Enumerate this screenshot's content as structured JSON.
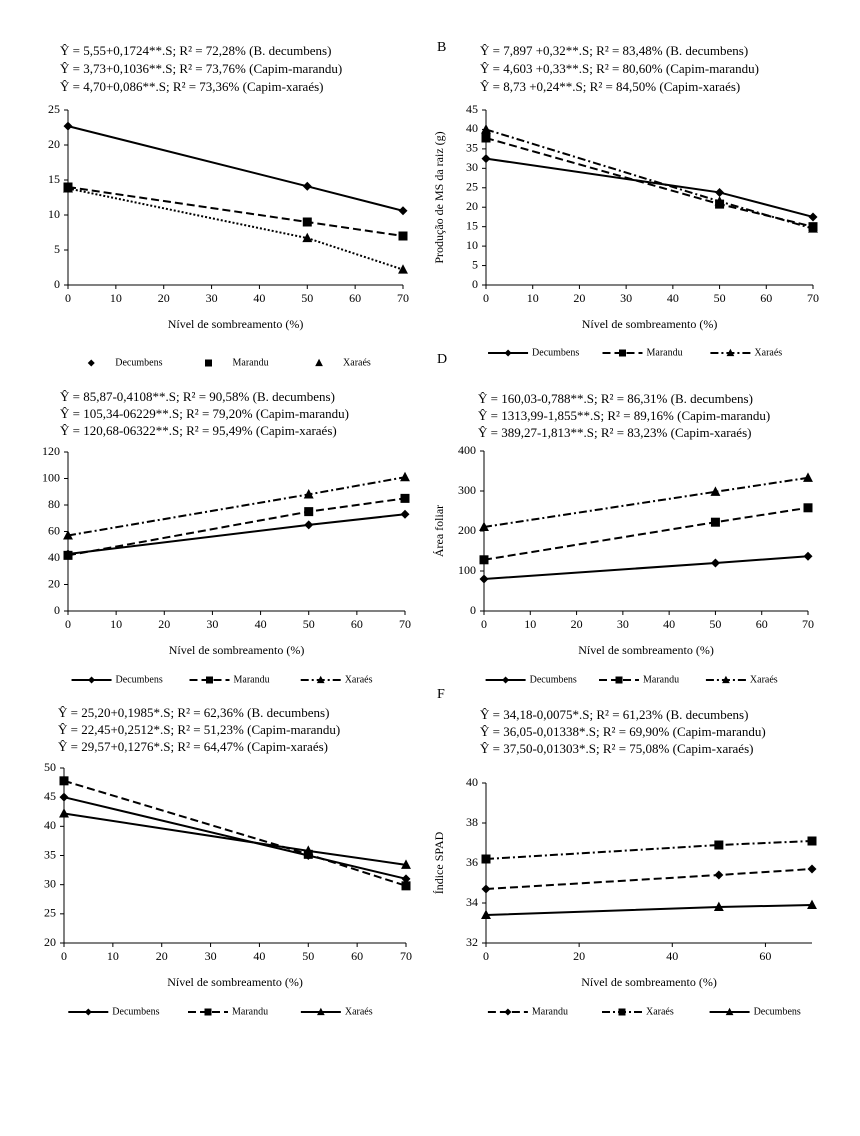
{
  "chart_data": [
    {
      "type": "line",
      "annotations": [
        "Ŷ = 5,55+0,1724**.S; R² = 72,28% (B. decumbens)",
        "Ŷ = 3,73+0,1036**.S; R² = 73,76% (Capim-marandu)",
        "Ŷ = 4,70+0,086**.S; R² = 73,36% (Capim-xaraés)"
      ],
      "x_label": "Nível de sombreamento (%)",
      "x": [
        0,
        50,
        70
      ],
      "xlim": [
        0,
        70
      ],
      "xticks": [
        0,
        10,
        20,
        30,
        40,
        50,
        60,
        70
      ],
      "ylim": [
        0,
        25
      ],
      "yticks": [
        0,
        5,
        10,
        15,
        20,
        25
      ],
      "legend_lines": false,
      "series": [
        {
          "name": "Decumbens",
          "color": "#000000",
          "marker": "diamond",
          "line_style": "solid",
          "values": [
            22.7,
            14.1,
            10.6
          ]
        },
        {
          "name": "Marandu",
          "color": "#000000",
          "marker": "square",
          "line_style": "dashed",
          "values": [
            14.0,
            9.0,
            7.0
          ]
        },
        {
          "name": "Xaraés",
          "color": "#000000",
          "marker": "triangle",
          "line_style": "dotted",
          "values": [
            13.8,
            6.7,
            2.2
          ]
        }
      ]
    },
    {
      "type": "line",
      "label": "B",
      "annotations": [
        "Ŷ = 7,897 +0,32**.S; R² = 83,48% (B. decumbens)",
        "Ŷ = 4,603 +0,33**.S; R² = 80,60% (Capim-marandu)",
        "Ŷ = 8,73 +0,24**.S; R² = 84,50% (Capim-xaraés)"
      ],
      "x_label": "Nível de sombreamento (%)",
      "y_label": "Produção de MS da raiz (g)",
      "x": [
        0,
        50,
        70
      ],
      "xlim": [
        0,
        70
      ],
      "xticks": [
        0,
        10,
        20,
        30,
        40,
        50,
        60,
        70
      ],
      "ylim": [
        0,
        45
      ],
      "yticks": [
        0,
        5,
        10,
        15,
        20,
        25,
        30,
        35,
        40,
        45
      ],
      "legend_lines": true,
      "series": [
        {
          "name": "Decumbens",
          "color": "#000000",
          "marker": "diamond",
          "line_style": "solid",
          "values": [
            32.5,
            23.8,
            17.5
          ]
        },
        {
          "name": "Marandu",
          "color": "#000000",
          "marker": "square",
          "line_style": "dashed",
          "values": [
            37.8,
            20.8,
            15.0
          ]
        },
        {
          "name": "Xaraés",
          "color": "#000000",
          "marker": "triangle",
          "line_style": "dashdot",
          "values": [
            40.0,
            21.5,
            14.5
          ]
        }
      ]
    },
    {
      "type": "line",
      "annotations": [
        "Ŷ = 85,87-0,4108**.S; R² = 90,58% (B. decumbens)",
        "Ŷ = 105,34-06229**.S; R² = 79,20% (Capim-marandu)",
        "Ŷ = 120,68-06322**.S; R² = 95,49% (Capim-xaraés)"
      ],
      "x_label": "Nível de sombreamento (%)",
      "x": [
        0,
        50,
        70
      ],
      "xlim": [
        0,
        70
      ],
      "xticks": [
        0,
        10,
        20,
        30,
        40,
        50,
        60,
        70
      ],
      "ylim": [
        0,
        120
      ],
      "yticks": [
        0,
        20,
        40,
        60,
        80,
        100,
        120
      ],
      "legend_lines": true,
      "series": [
        {
          "name": "Decumbens",
          "color": "#000000",
          "marker": "diamond",
          "line_style": "solid",
          "values": [
            43,
            65,
            73
          ]
        },
        {
          "name": "Marandu",
          "color": "#000000",
          "marker": "square",
          "line_style": "dashed",
          "values": [
            42,
            75,
            85
          ]
        },
        {
          "name": "Xaraés",
          "color": "#000000",
          "marker": "triangle",
          "line_style": "dashdot",
          "values": [
            57,
            88,
            101
          ]
        }
      ]
    },
    {
      "type": "line",
      "label": "D",
      "annotations": [
        "Ŷ = 160,03-0,788**.S; R² = 86,31% (B. decumbens)",
        "Ŷ = 1313,99-1,855**.S; R² = 89,16% (Capim-marandu)",
        "Ŷ = 389,27-1,813**.S; R² = 83,23% (Capim-xaraés)"
      ],
      "x_label": "Nível de sombreamento (%)",
      "y_label": "Área foliar",
      "x": [
        0,
        50,
        70
      ],
      "xlim": [
        0,
        70
      ],
      "xticks": [
        0,
        10,
        20,
        30,
        40,
        50,
        60,
        70
      ],
      "ylim": [
        0,
        400
      ],
      "yticks": [
        0,
        100,
        200,
        300,
        400
      ],
      "legend_lines": true,
      "series": [
        {
          "name": "Decumbens",
          "color": "#000000",
          "marker": "diamond",
          "line_style": "solid",
          "values": [
            80,
            120,
            137
          ]
        },
        {
          "name": "Marandu",
          "color": "#000000",
          "marker": "square",
          "line_style": "dashed",
          "values": [
            128,
            222,
            258
          ]
        },
        {
          "name": "Xaraés",
          "color": "#000000",
          "marker": "triangle",
          "line_style": "dashdot",
          "values": [
            210,
            298,
            333
          ]
        }
      ]
    },
    {
      "type": "line",
      "annotations": [
        "Ŷ = 25,20+0,1985*.S; R² = 62,36% (B. decumbens)",
        "Ŷ = 22,45+0,2512*.S; R² = 51,23% (Capim-marandu)",
        "Ŷ = 29,57+0,1276*.S; R² = 64,47% (Capim-xaraés)"
      ],
      "x_label": "Nível de sombreamento (%)",
      "x": [
        0,
        50,
        70
      ],
      "xlim": [
        0,
        70
      ],
      "xticks": [
        0,
        10,
        20,
        30,
        40,
        50,
        60,
        70
      ],
      "ylim": [
        20,
        50
      ],
      "yticks": [
        20,
        25,
        30,
        35,
        40,
        45,
        50
      ],
      "legend_lines": true,
      "series": [
        {
          "name": "Decumbens",
          "color": "#000000",
          "marker": "diamond",
          "line_style": "solid",
          "values": [
            45.0,
            35.0,
            31.0
          ]
        },
        {
          "name": "Marandu",
          "color": "#000000",
          "marker": "square",
          "line_style": "dashed",
          "values": [
            47.8,
            35.2,
            29.8
          ]
        },
        {
          "name": "Xaraés",
          "color": "#000000",
          "marker": "triangle",
          "line_style": "solid",
          "values": [
            42.2,
            35.8,
            33.4
          ]
        }
      ]
    },
    {
      "type": "line",
      "label": "F",
      "annotations": [
        "Ŷ = 34,18-0,0075*.S; R² = 61,23% (B. decumbens)",
        "Ŷ = 36,05-0,01338*.S; R² = 69,90% (Capim-marandu)",
        "Ŷ = 37,50-0,01303*.S; R² = 75,08% (Capim-xaraés)"
      ],
      "x_label": "Nível de sombreamento (%)",
      "y_label": "Índice SPAD",
      "x": [
        0,
        50,
        70
      ],
      "xlim": [
        0,
        70
      ],
      "xticks": [
        0,
        20,
        40,
        60
      ],
      "ylim": [
        32,
        40
      ],
      "yticks": [
        32,
        34,
        36,
        38,
        40
      ],
      "legend_lines": true,
      "series": [
        {
          "name": "Marandu",
          "color": "#000000",
          "marker": "diamond",
          "line_style": "dashed",
          "values": [
            34.7,
            35.4,
            35.7
          ]
        },
        {
          "name": "Xaraés",
          "color": "#000000",
          "marker": "square",
          "line_style": "dashdot",
          "values": [
            36.2,
            36.9,
            37.1
          ]
        },
        {
          "name": "Decumbens",
          "color": "#000000",
          "marker": "triangle",
          "line_style": "solid",
          "values": [
            33.4,
            33.8,
            33.9
          ]
        }
      ]
    }
  ]
}
